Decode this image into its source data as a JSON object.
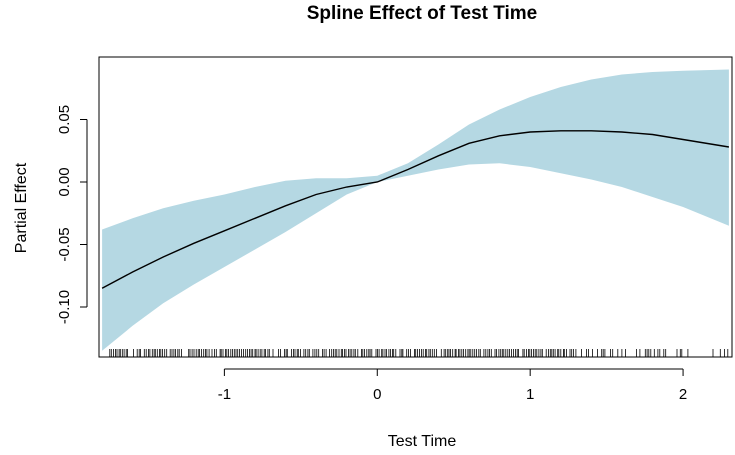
{
  "chart_data": {
    "type": "line",
    "title": "Spline Effect of Test Time",
    "xlabel": "Test Time",
    "ylabel": "Partial Effect",
    "xlim": [
      -1.82,
      2.32
    ],
    "ylim": [
      -0.14,
      0.1
    ],
    "x_ticks": [
      -1,
      0,
      1,
      2
    ],
    "x_tick_labels": [
      "-1",
      "0",
      "1",
      "2"
    ],
    "y_ticks": [
      -0.1,
      -0.05,
      0.0,
      0.05
    ],
    "y_tick_labels": [
      "-0.10",
      "-0.05",
      "0.00",
      "0.05"
    ],
    "grid": false,
    "colors": {
      "band": "#b5d8e3",
      "line": "#000000"
    },
    "x": [
      -1.8,
      -1.6,
      -1.4,
      -1.2,
      -1.0,
      -0.8,
      -0.6,
      -0.4,
      -0.2,
      0.0,
      0.2,
      0.4,
      0.6,
      0.8,
      1.0,
      1.2,
      1.4,
      1.6,
      1.8,
      2.0,
      2.3
    ],
    "series": [
      {
        "role": "fit",
        "values": [
          -0.085,
          -0.072,
          -0.06,
          -0.049,
          -0.039,
          -0.029,
          -0.019,
          -0.01,
          -0.004,
          0.0,
          0.01,
          0.021,
          0.031,
          0.037,
          0.04,
          0.041,
          0.041,
          0.04,
          0.038,
          0.034,
          0.028
        ]
      },
      {
        "role": "upper",
        "values": [
          -0.038,
          -0.029,
          -0.021,
          -0.015,
          -0.01,
          -0.004,
          0.001,
          0.003,
          0.003,
          0.005,
          0.015,
          0.03,
          0.046,
          0.058,
          0.068,
          0.076,
          0.082,
          0.086,
          0.088,
          0.089,
          0.09
        ]
      },
      {
        "role": "lower",
        "values": [
          -0.135,
          -0.115,
          -0.097,
          -0.082,
          -0.068,
          -0.054,
          -0.04,
          -0.025,
          -0.01,
          0.0,
          0.005,
          0.01,
          0.014,
          0.015,
          0.012,
          0.007,
          0.002,
          -0.004,
          -0.012,
          -0.02,
          -0.035
        ]
      }
    ],
    "rug_x_range": [
      -1.75,
      2.3
    ]
  }
}
